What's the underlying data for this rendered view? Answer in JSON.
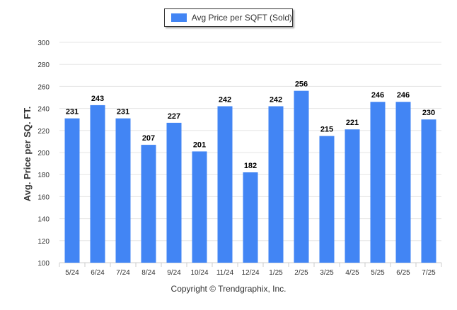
{
  "colors": {
    "bar": "#4285f4",
    "grid": "#e6e6e6",
    "text": "#333333"
  },
  "legend": {
    "label": "Avg Price per SQFT (Sold)"
  },
  "footer": {
    "text": "Copyright © Trendgraphix, Inc."
  },
  "chart_data": {
    "type": "bar",
    "title": "",
    "xlabel": "",
    "ylabel": "Avg. Price per SQ. FT.",
    "ylim": [
      100,
      300
    ],
    "yticks": [
      100,
      120,
      140,
      160,
      180,
      200,
      220,
      240,
      260,
      280,
      300
    ],
    "grid": true,
    "legend_position": "top-center",
    "categories": [
      "5/24",
      "6/24",
      "7/24",
      "8/24",
      "9/24",
      "10/24",
      "11/24",
      "12/24",
      "1/25",
      "2/25",
      "3/25",
      "4/25",
      "5/25",
      "6/25",
      "7/25"
    ],
    "series": [
      {
        "name": "Avg Price per SQFT (Sold)",
        "values": [
          231,
          243,
          231,
          207,
          227,
          201,
          242,
          182,
          242,
          256,
          215,
          221,
          246,
          246,
          230
        ]
      }
    ]
  }
}
